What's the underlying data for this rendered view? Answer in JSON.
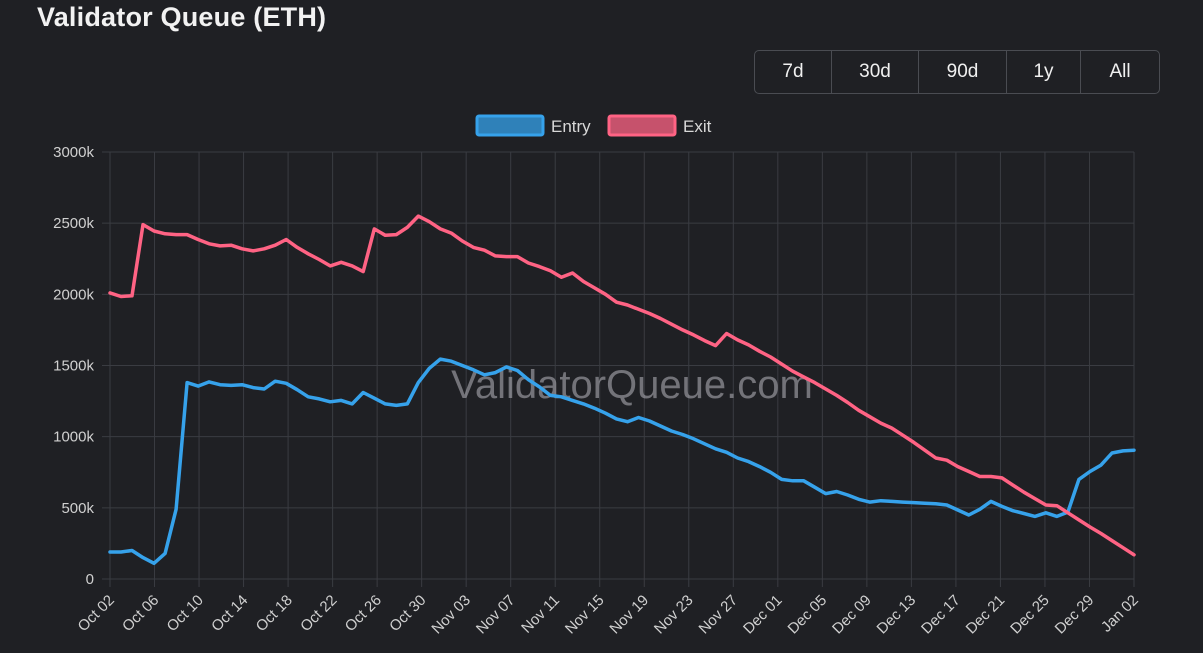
{
  "header": {
    "title": "Validator Queue (ETH)"
  },
  "range_buttons": [
    {
      "key": "7d",
      "label": "7d"
    },
    {
      "key": "30d",
      "label": "30d"
    },
    {
      "key": "90d",
      "label": "90d"
    },
    {
      "key": "1y",
      "label": "1y"
    },
    {
      "key": "all",
      "label": "All"
    }
  ],
  "watermark": "ValidatorQueue.com",
  "colors": {
    "entry": "#36a2eb",
    "exit": "#ff6384",
    "grid": "#3a3c42",
    "background": "#1f2024"
  },
  "chart_data": {
    "type": "line",
    "title": "Validator Queue (ETH)",
    "xlabel": "",
    "ylabel": "",
    "ylim": [
      0,
      3000
    ],
    "y_ticks": [
      0,
      500,
      1000,
      1500,
      2000,
      2500,
      3000
    ],
    "y_tick_labels": [
      "0",
      "500k",
      "1000k",
      "1500k",
      "2000k",
      "2500k",
      "3000k"
    ],
    "x_tick_labels": [
      "Oct 02",
      "Oct 06",
      "Oct 10",
      "Oct 14",
      "Oct 18",
      "Oct 22",
      "Oct 26",
      "Oct 30",
      "Nov 03",
      "Nov 07",
      "Nov 11",
      "Nov 15",
      "Nov 19",
      "Nov 23",
      "Nov 27",
      "Dec 01",
      "Dec 05",
      "Dec 09",
      "Dec 13",
      "Dec 17",
      "Dec 21",
      "Dec 25",
      "Dec 29",
      "Jan 02"
    ],
    "grid": true,
    "legend_position": "top-center",
    "series": [
      {
        "name": "Entry",
        "color": "#36a2eb",
        "values": [
          190,
          190,
          200,
          150,
          110,
          180,
          490,
          1380,
          1355,
          1385,
          1365,
          1360,
          1365,
          1345,
          1335,
          1390,
          1375,
          1330,
          1280,
          1265,
          1245,
          1255,
          1230,
          1310,
          1270,
          1230,
          1220,
          1230,
          1380,
          1480,
          1545,
          1530,
          1500,
          1470,
          1435,
          1450,
          1490,
          1465,
          1400,
          1350,
          1290,
          1280,
          1255,
          1230,
          1200,
          1165,
          1125,
          1105,
          1135,
          1110,
          1075,
          1040,
          1015,
          985,
          950,
          915,
          890,
          850,
          825,
          790,
          750,
          700,
          690,
          690,
          645,
          600,
          615,
          590,
          560,
          540,
          550,
          545,
          540,
          537,
          532,
          528,
          520,
          485,
          450,
          490,
          545,
          510,
          480,
          460,
          440,
          465,
          440,
          470,
          700,
          755,
          800,
          885,
          900,
          905
        ]
      },
      {
        "name": "Exit",
        "color": "#ff6384",
        "values": [
          2010,
          1985,
          1990,
          2490,
          2445,
          2425,
          2420,
          2420,
          2385,
          2355,
          2340,
          2345,
          2320,
          2305,
          2320,
          2345,
          2385,
          2330,
          2285,
          2245,
          2200,
          2225,
          2200,
          2160,
          2460,
          2415,
          2420,
          2470,
          2550,
          2510,
          2460,
          2430,
          2375,
          2330,
          2310,
          2270,
          2265,
          2265,
          2220,
          2195,
          2165,
          2120,
          2150,
          2090,
          2045,
          2000,
          1945,
          1925,
          1895,
          1865,
          1830,
          1790,
          1750,
          1715,
          1675,
          1640,
          1725,
          1680,
          1645,
          1600,
          1560,
          1510,
          1460,
          1420,
          1380,
          1335,
          1290,
          1240,
          1185,
          1140,
          1095,
          1060,
          1010,
          960,
          905,
          850,
          835,
          790,
          755,
          720,
          720,
          710,
          660,
          610,
          565,
          520,
          515,
          465,
          415,
          365,
          320,
          270,
          220,
          170
        ]
      }
    ]
  }
}
